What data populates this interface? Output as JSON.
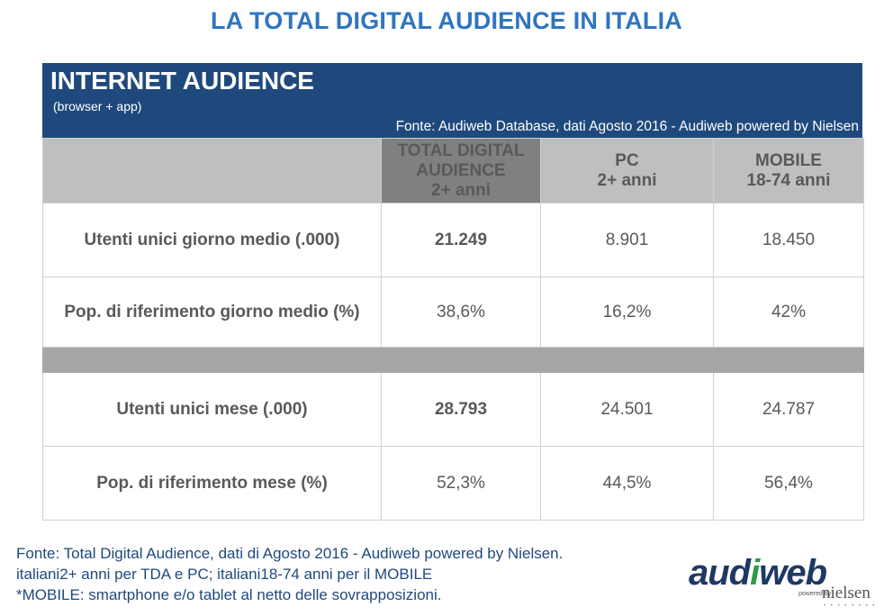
{
  "title": "LA TOTAL DIGITAL AUDIENCE IN ITALIA",
  "panel": {
    "title": "INTERNET AUDIENCE",
    "subtitle": "(browser + app)",
    "source": "Fonte: Audiweb Database, dati Agosto 2016 - Audiweb powered by Nielsen"
  },
  "columns": [
    {
      "line1": "TOTAL DIGITAL",
      "line2": "AUDIENCE",
      "line3": "2+ anni"
    },
    {
      "line1": "PC",
      "line2": "2+ anni"
    },
    {
      "line1": "MOBILE",
      "line2": "18-74 anni"
    }
  ],
  "rows": [
    {
      "label": "Utenti unici giorno medio (.000)",
      "tda": "21.249",
      "pc": "8.901",
      "mobile": "18.450"
    },
    {
      "label": "Pop. di riferimento giorno medio (%)",
      "tda": "38,6%",
      "pc": "16,2%",
      "mobile": "42%"
    },
    {
      "label": "Utenti unici mese (.000)",
      "tda": "28.793",
      "pc": "24.501",
      "mobile": "24.787"
    },
    {
      "label": "Pop. di riferimento  mese (%)",
      "tda": "52,3%",
      "pc": "44,5%",
      "mobile": "56,4%"
    }
  ],
  "footer": {
    "line1": "Fonte: Total Digital Audience, dati di Agosto 2016 - Audiweb powered by Nielsen.",
    "line2": "italiani2+ anni per TDA e PC; italiani18-74 anni per il MOBILE",
    "line3": "*MOBILE: smartphone e/o tablet al netto delle sovrapposizioni."
  },
  "logo": {
    "name_part1": "aud",
    "name_part2": "i",
    "name_part3": "web",
    "powered": "powered by",
    "partner": "nielsen"
  },
  "colors": {
    "title": "#2f75c0",
    "panel": "#1f497d",
    "header_highlight": "#808080",
    "header": "#bfbfbf",
    "separator": "#a6a6a6"
  }
}
